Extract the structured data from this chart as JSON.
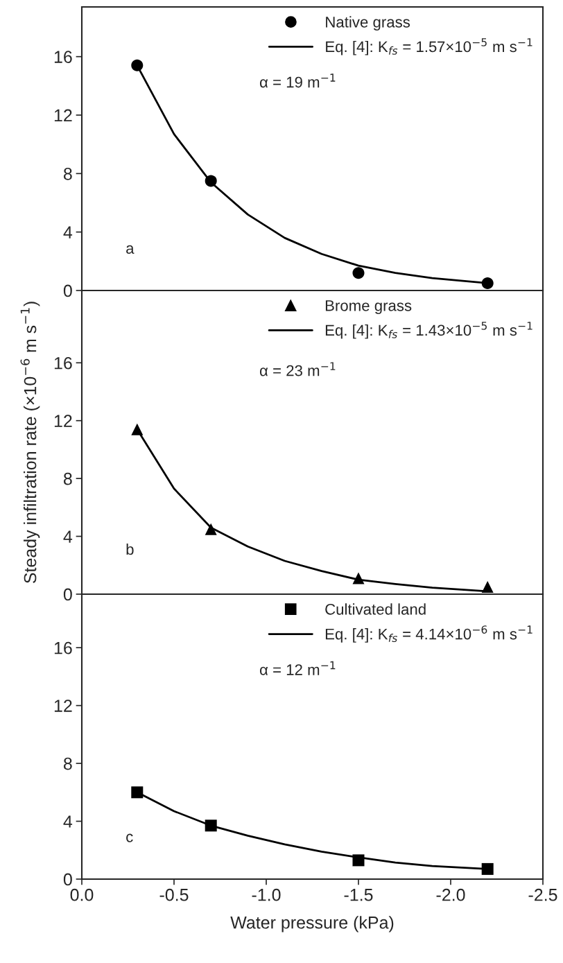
{
  "chart_data": [
    {
      "type": "scatter",
      "xlim": [
        0,
        -2.5
      ],
      "ylim": [
        0,
        19.4
      ],
      "xticks": [
        {
          "value": 0,
          "label": null
        },
        {
          "value": -0.5,
          "label": null
        },
        {
          "value": -1.0,
          "label": null
        },
        {
          "value": -1.5,
          "label": null
        },
        {
          "value": -2.0,
          "label": null
        },
        {
          "value": -2.5,
          "label": null
        }
      ],
      "yticks": [
        0,
        4,
        8,
        12,
        16
      ],
      "tick_labels": "y",
      "legend": "top right",
      "grid": false,
      "annotations": [
        "α = 19 m$^{−1}$",
        "a"
      ],
      "series": [
        {
          "name": "Native grass",
          "color": "#000000",
          "marker": "circle",
          "x": [
            -0.3,
            -0.7,
            -1.5,
            -2.2
          ],
          "values": [
            15.4,
            7.5,
            1.2,
            0.5
          ]
        },
        {
          "type": "line",
          "name": "Eq. [4]: K$_{fs}$ = 1.57×10$^{−5}$ m s$^{−1}$",
          "color": "#000000",
          "line_style": "solid",
          "x": [
            -0.3,
            -0.5,
            -0.7,
            -0.9,
            -1.1,
            -1.3,
            -1.5,
            -1.7,
            -1.9,
            -2.2
          ],
          "values": [
            15.4,
            10.7,
            7.4,
            5.2,
            3.6,
            2.5,
            1.7,
            1.2,
            0.85,
            0.5
          ]
        }
      ]
    },
    {
      "type": "scatter",
      "xlim": [
        0,
        -2.5
      ],
      "ylim": [
        0,
        21
      ],
      "xticks": [
        {
          "value": 0,
          "label": null
        },
        {
          "value": -0.5,
          "label": null
        },
        {
          "value": -1.0,
          "label": null
        },
        {
          "value": -1.5,
          "label": null
        },
        {
          "value": -2.0,
          "label": null
        },
        {
          "value": -2.5,
          "label": null
        }
      ],
      "yticks": [
        0,
        4,
        8,
        12,
        16
      ],
      "tick_labels": "y",
      "legend": "top right",
      "grid": false,
      "ylabel": "Steady infiltration rate (×10$^{−6}$ m s$^{−1}$)",
      "annotations": [
        "α = 23 m$^{−1}$",
        "b"
      ],
      "series": [
        {
          "name": "Brome grass",
          "color": "#000000",
          "marker": "triangle",
          "x": [
            -0.3,
            -0.7,
            -1.5,
            -2.2
          ],
          "values": [
            11.4,
            4.5,
            1.1,
            0.5
          ]
        },
        {
          "type": "line",
          "name": "Eq. [4]: K$_{fs}$ = 1.43×10$^{−5}$ m s$^{−1}$",
          "color": "#000000",
          "line_style": "solid",
          "x": [
            -0.3,
            -0.5,
            -0.7,
            -0.9,
            -1.1,
            -1.3,
            -1.5,
            -1.7,
            -1.9,
            -2.2
          ],
          "values": [
            11.4,
            7.3,
            4.6,
            3.3,
            2.3,
            1.6,
            1.0,
            0.7,
            0.45,
            0.2
          ]
        }
      ]
    },
    {
      "type": "scatter",
      "xlim": [
        0,
        -2.5
      ],
      "ylim": [
        0,
        19.7
      ],
      "xticks": [
        {
          "value": 0,
          "label": "0.0"
        },
        {
          "value": -0.5,
          "label": "-0.5"
        },
        {
          "value": -1.0,
          "label": "-1.0"
        },
        {
          "value": -1.5,
          "label": "-1.5"
        },
        {
          "value": -2.0,
          "label": "-2.0"
        },
        {
          "value": -2.5,
          "label": "-2.5"
        }
      ],
      "yticks": [
        0,
        4,
        8,
        12,
        16
      ],
      "legend": "top right",
      "grid": false,
      "xlabel": "Water pressure (kPa)",
      "annotations": [
        "α = 12 m$^{−1}$",
        "c"
      ],
      "series": [
        {
          "name": "Cultivated land",
          "color": "#000000",
          "marker": "square",
          "x": [
            -0.3,
            -0.7,
            -1.5,
            -2.2
          ],
          "values": [
            6.0,
            3.7,
            1.3,
            0.7
          ]
        },
        {
          "type": "line",
          "name": "Eq. [4]: K$_{fs}$ = 4.14×10$^{−6}$ m s$^{−1}$",
          "color": "#000000",
          "line_style": "solid",
          "x": [
            -0.3,
            -0.5,
            -0.7,
            -0.9,
            -1.1,
            -1.3,
            -1.5,
            -1.7,
            -1.9,
            -2.2
          ],
          "values": [
            6.0,
            4.7,
            3.7,
            3.0,
            2.4,
            1.9,
            1.5,
            1.15,
            0.9,
            0.7
          ]
        }
      ]
    }
  ]
}
